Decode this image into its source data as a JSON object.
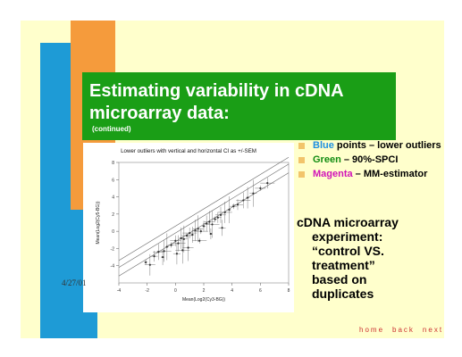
{
  "slide": {
    "title_line1": "Estimating variability in cDNA",
    "title_line2": "microarray data:",
    "title_sub": "(continued)",
    "date": "4/27/01",
    "bullets": [
      {
        "highlight": "Blue",
        "rest": " points – lower outliers"
      },
      {
        "highlight": "Green",
        "rest": " – 90%-SPCI"
      },
      {
        "highlight": "Magenta",
        "rest": " – MM-estimator"
      }
    ],
    "body_line1": "cDNA microarray",
    "body_line2": "experiment:",
    "body_line3": "“control VS.",
    "body_line4": "treatment”",
    "body_line5": "based on",
    "body_line6": "duplicates",
    "nav": {
      "home": "home",
      "back": "back",
      "next": "next"
    }
  },
  "colors": {
    "blue": "#1e9bd6",
    "orange": "#f59b3c",
    "green": "#1a9e16",
    "magenta": "#d114b8",
    "background": "#ffffcc"
  },
  "chart_data": {
    "type": "scatter",
    "title": "Lower outliers with vertical and horizontal CI as +/-SEM",
    "xlabel": "Mean(Log2(Cy3-BG))",
    "ylabel": "Mean(Log2(Cy5-BG))",
    "xlim": [
      -4,
      8
    ],
    "ylim": [
      -6,
      8
    ],
    "x_ticks": [
      -4,
      -2,
      0,
      2,
      4,
      6,
      8
    ],
    "y_ticks": [
      -4,
      -2,
      0,
      2,
      4,
      6,
      8
    ],
    "lines": [
      {
        "name": "",
        "x": [
          -4,
          8
        ],
        "y": [
          -4.2,
          7.8
        ]
      },
      {
        "name": "",
        "x": [
          -4,
          8
        ],
        "y": [
          -3.4,
          8.6
        ]
      },
      {
        "name": "",
        "x": [
          -4,
          8
        ],
        "y": [
          -5.2,
          6.8
        ]
      }
    ],
    "points": {
      "x": [
        -2.1,
        -1.5,
        -1.2,
        -0.8,
        -0.6,
        -0.3,
        0.0,
        0.2,
        0.4,
        0.6,
        0.8,
        1.0,
        1.2,
        1.4,
        1.6,
        1.8,
        2.0,
        2.2,
        2.4,
        2.6,
        2.8,
        3.0,
        3.2,
        3.5,
        3.8,
        4.1,
        4.4,
        4.8,
        5.1,
        5.5,
        6.0,
        6.5,
        -0.9,
        0.1,
        0.9,
        1.7,
        2.5,
        3.3,
        -1.8,
        0.5
      ],
      "y": [
        -3.6,
        -2.9,
        -2.4,
        -2.3,
        -1.8,
        -1.6,
        -1.1,
        -1.4,
        -0.8,
        -0.9,
        -0.5,
        -0.2,
        -0.4,
        0.1,
        0.3,
        0.0,
        0.6,
        0.9,
        1.1,
        0.8,
        1.4,
        1.6,
        1.9,
        2.2,
        2.5,
        2.9,
        3.1,
        3.6,
        3.9,
        4.4,
        5.0,
        5.6,
        -3.0,
        -2.6,
        -1.9,
        -1.1,
        -0.3,
        0.4,
        -3.9,
        -2.2
      ]
    }
  }
}
